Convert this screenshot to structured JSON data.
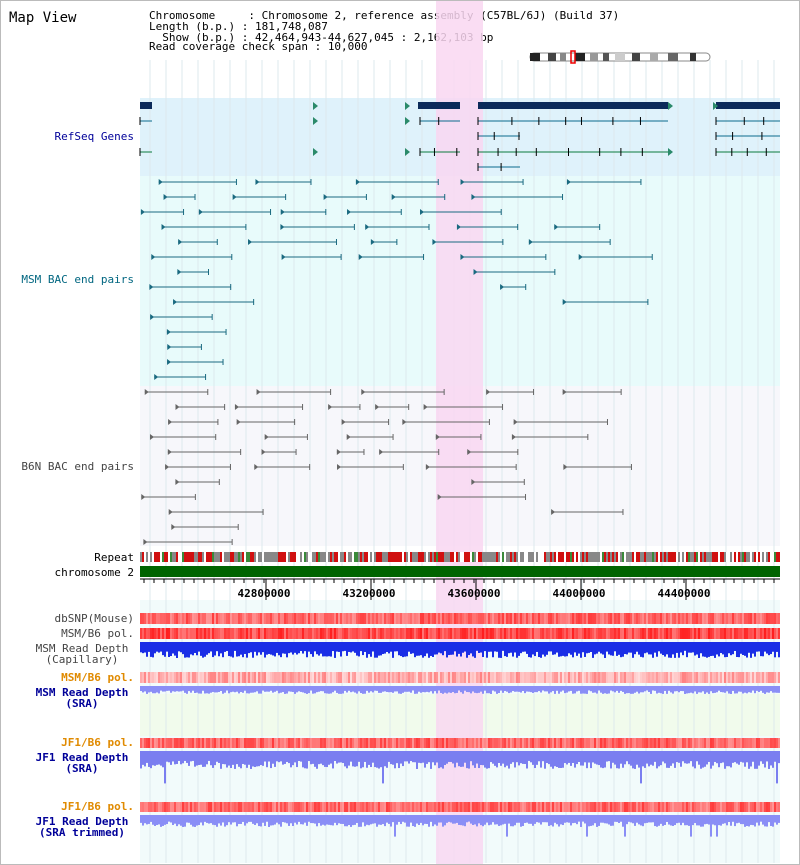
{
  "title": "Map View",
  "header": {
    "chrom_label": "Chromosome     : ",
    "chrom_value": "Chromosome 2, reference assembly (C57BL/6J) (Build 37)",
    "length_label": "Length (b.p.) : ",
    "length_value": "181,748,087",
    "show_label": "  Show (b.p.) : ",
    "show_value": "42,464,943-44,627,045 : 2,162,103 bp",
    "span_label": "Read coverage check span : ",
    "span_value": "10,000"
  },
  "tracks": {
    "refseq": "RefSeq Genes",
    "msm_bac": "MSM BAC end pairs",
    "b6n_bac": "B6N BAC end pairs",
    "repeat": "Repeat",
    "chromosome": "chromosome 2",
    "dbsnp": "dbSNP(Mouse)",
    "msm_b6_pol_1": "MSM/B6 pol.",
    "msm_depth_cap_1": "MSM Read Depth",
    "msm_depth_cap_2": "(Capillary)",
    "msm_b6_pol_2": "MSM/B6 pol.",
    "msm_depth_sra_1": "MSM Read Depth",
    "msm_depth_sra_2": "(SRA)",
    "jf1_b6_pol_1": "JF1/B6 pol.",
    "jf1_depth_sra_1": "JF1 Read Depth",
    "jf1_depth_sra_2": "(SRA)",
    "jf1_b6_pol_2": "JF1/B6 pol.",
    "jf1_depth_trim_1": "JF1 Read Depth",
    "jf1_depth_trim_2": "(SRA trimmed)"
  },
  "axis": {
    "ticks": [
      "42800000",
      "43200000",
      "43600000",
      "44000000",
      "44400000"
    ]
  },
  "colors": {
    "refseq_label": "#000099",
    "msm_label": "#006680",
    "b6n_label": "#444444",
    "pol_orange": "#e08a00",
    "depth_blue": "#000099",
    "highlight": "#f9d7f1",
    "chromosome": "#006400"
  }
}
